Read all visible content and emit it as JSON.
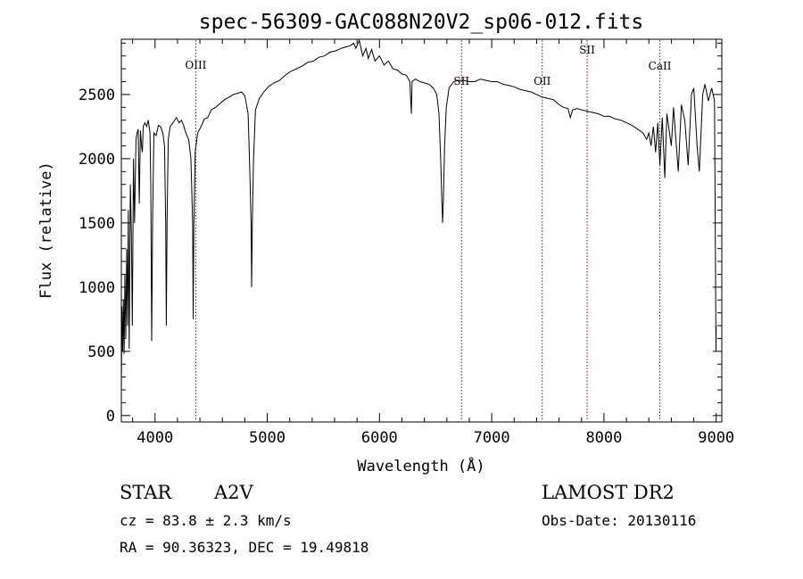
{
  "chart_data": {
    "type": "line",
    "title": "spec-56309-GAC088N20V2_sp06-012.fits",
    "xlabel": "Wavelength (Å)",
    "ylabel": "Flux (relative)",
    "xlim": [
      3700,
      9050
    ],
    "ylim": [
      -50,
      2930
    ],
    "xticks": [
      4000,
      5000,
      6000,
      7000,
      8000,
      9000
    ],
    "yticks": [
      0,
      500,
      1000,
      1500,
      2000,
      2500
    ],
    "minor_xstep": 200,
    "minor_ystep": 100,
    "grid": false,
    "line_color": "#000000",
    "marker_color": "#8b0000",
    "line_markers": [
      {
        "label": "OIII",
        "wavelength": 4363
      },
      {
        "label": "SII",
        "wavelength": 6731
      },
      {
        "label": "OII",
        "wavelength": 7450
      },
      {
        "label": "SII",
        "wavelength": 7850
      },
      {
        "label": "CaII",
        "wavelength": 8498
      }
    ],
    "series": [
      {
        "points": [
          [
            3700,
            200
          ],
          [
            3705,
            850
          ],
          [
            3712,
            500
          ],
          [
            3718,
            900
          ],
          [
            3725,
            480
          ],
          [
            3732,
            1100
          ],
          [
            3740,
            600
          ],
          [
            3748,
            1300
          ],
          [
            3755,
            700
          ],
          [
            3762,
            1600
          ],
          [
            3770,
            520
          ],
          [
            3780,
            1800
          ],
          [
            3790,
            1400
          ],
          [
            3798,
            700
          ],
          [
            3808,
            2000
          ],
          [
            3818,
            1500
          ],
          [
            3830,
            2150
          ],
          [
            3840,
            2200
          ],
          [
            3850,
            2230
          ],
          [
            3860,
            1650
          ],
          [
            3870,
            2220
          ],
          [
            3880,
            2100
          ],
          [
            3888,
            2050
          ],
          [
            3895,
            2250
          ],
          [
            3910,
            2280
          ],
          [
            3925,
            2250
          ],
          [
            3940,
            2300
          ],
          [
            3955,
            2200
          ],
          [
            3962,
            1800
          ],
          [
            3970,
            580
          ],
          [
            3978,
            1500
          ],
          [
            3990,
            2200
          ],
          [
            4010,
            2180
          ],
          [
            4030,
            2260
          ],
          [
            4050,
            2250
          ],
          [
            4070,
            2200
          ],
          [
            4085,
            2100
          ],
          [
            4095,
            1500
          ],
          [
            4101,
            700
          ],
          [
            4108,
            1550
          ],
          [
            4118,
            2150
          ],
          [
            4135,
            2250
          ],
          [
            4160,
            2280
          ],
          [
            4190,
            2320
          ],
          [
            4215,
            2280
          ],
          [
            4235,
            2300
          ],
          [
            4255,
            2260
          ],
          [
            4275,
            2200
          ],
          [
            4300,
            2150
          ],
          [
            4320,
            2000
          ],
          [
            4335,
            1500
          ],
          [
            4340,
            750
          ],
          [
            4346,
            1500
          ],
          [
            4358,
            2050
          ],
          [
            4380,
            2200
          ],
          [
            4410,
            2250
          ],
          [
            4440,
            2310
          ],
          [
            4470,
            2320
          ],
          [
            4500,
            2380
          ],
          [
            4540,
            2400
          ],
          [
            4580,
            2430
          ],
          [
            4620,
            2460
          ],
          [
            4660,
            2480
          ],
          [
            4700,
            2500
          ],
          [
            4740,
            2510
          ],
          [
            4770,
            2520
          ],
          [
            4800,
            2490
          ],
          [
            4830,
            2350
          ],
          [
            4845,
            1900
          ],
          [
            4856,
            1500
          ],
          [
            4861,
            1000
          ],
          [
            4867,
            1500
          ],
          [
            4878,
            2000
          ],
          [
            4895,
            2380
          ],
          [
            4930,
            2470
          ],
          [
            4970,
            2520
          ],
          [
            5010,
            2560
          ],
          [
            5060,
            2590
          ],
          [
            5110,
            2610
          ],
          [
            5160,
            2650
          ],
          [
            5210,
            2680
          ],
          [
            5260,
            2700
          ],
          [
            5310,
            2720
          ],
          [
            5360,
            2750
          ],
          [
            5410,
            2760
          ],
          [
            5460,
            2790
          ],
          [
            5510,
            2800
          ],
          [
            5560,
            2830
          ],
          [
            5610,
            2840
          ],
          [
            5660,
            2860
          ],
          [
            5700,
            2870
          ],
          [
            5740,
            2880
          ],
          [
            5770,
            2900
          ],
          [
            5790,
            2860
          ],
          [
            5820,
            2920
          ],
          [
            5850,
            2800
          ],
          [
            5880,
            2860
          ],
          [
            5900,
            2780
          ],
          [
            5930,
            2850
          ],
          [
            5960,
            2760
          ],
          [
            6000,
            2800
          ],
          [
            6040,
            2730
          ],
          [
            6080,
            2760
          ],
          [
            6120,
            2700
          ],
          [
            6160,
            2690
          ],
          [
            6200,
            2660
          ],
          [
            6240,
            2650
          ],
          [
            6270,
            2600
          ],
          [
            6284,
            2350
          ],
          [
            6290,
            2600
          ],
          [
            6320,
            2620
          ],
          [
            6360,
            2600
          ],
          [
            6400,
            2590
          ],
          [
            6440,
            2580
          ],
          [
            6480,
            2550
          ],
          [
            6510,
            2500
          ],
          [
            6530,
            2350
          ],
          [
            6545,
            2000
          ],
          [
            6555,
            1700
          ],
          [
            6563,
            1500
          ],
          [
            6570,
            1700
          ],
          [
            6580,
            2100
          ],
          [
            6595,
            2400
          ],
          [
            6620,
            2550
          ],
          [
            6660,
            2600
          ],
          [
            6700,
            2610
          ],
          [
            6750,
            2610
          ],
          [
            6800,
            2600
          ],
          [
            6850,
            2600
          ],
          [
            6900,
            2620
          ],
          [
            6950,
            2610
          ],
          [
            7000,
            2600
          ],
          [
            7050,
            2600
          ],
          [
            7100,
            2580
          ],
          [
            7150,
            2570
          ],
          [
            7200,
            2560
          ],
          [
            7250,
            2540
          ],
          [
            7300,
            2530
          ],
          [
            7350,
            2520
          ],
          [
            7400,
            2500
          ],
          [
            7450,
            2480
          ],
          [
            7500,
            2470
          ],
          [
            7550,
            2460
          ],
          [
            7600,
            2420
          ],
          [
            7640,
            2400
          ],
          [
            7680,
            2390
          ],
          [
            7700,
            2320
          ],
          [
            7720,
            2380
          ],
          [
            7760,
            2390
          ],
          [
            7800,
            2380
          ],
          [
            7850,
            2370
          ],
          [
            7900,
            2360
          ],
          [
            7950,
            2350
          ],
          [
            8000,
            2330
          ],
          [
            8050,
            2330
          ],
          [
            8100,
            2310
          ],
          [
            8150,
            2300
          ],
          [
            8200,
            2280
          ],
          [
            8250,
            2260
          ],
          [
            8300,
            2230
          ],
          [
            8350,
            2200
          ],
          [
            8380,
            2150
          ],
          [
            8400,
            2200
          ],
          [
            8420,
            2100
          ],
          [
            8440,
            2250
          ],
          [
            8460,
            2050
          ],
          [
            8480,
            2280
          ],
          [
            8498,
            1950
          ],
          [
            8520,
            2320
          ],
          [
            8542,
            1850
          ],
          [
            8560,
            2350
          ],
          [
            8600,
            2100
          ],
          [
            8620,
            2400
          ],
          [
            8662,
            1900
          ],
          [
            8690,
            2420
          ],
          [
            8720,
            2300
          ],
          [
            8750,
            1950
          ],
          [
            8780,
            2500
          ],
          [
            8800,
            2550
          ],
          [
            8830,
            2100
          ],
          [
            8850,
            1900
          ],
          [
            8880,
            2500
          ],
          [
            8900,
            2580
          ],
          [
            8930,
            2450
          ],
          [
            8960,
            2550
          ],
          [
            8985,
            2450
          ],
          [
            8998,
            500
          ],
          [
            9000,
            700
          ]
        ]
      }
    ]
  },
  "info": {
    "obj_class": "STAR",
    "subclass": "A2V",
    "survey": "LAMOST DR2",
    "cz": "cz = 83.8 ± 2.3 km/s",
    "obs_date": "Obs-Date: 20130116",
    "radec": "RA =  90.36323, DEC =  19.49818"
  }
}
